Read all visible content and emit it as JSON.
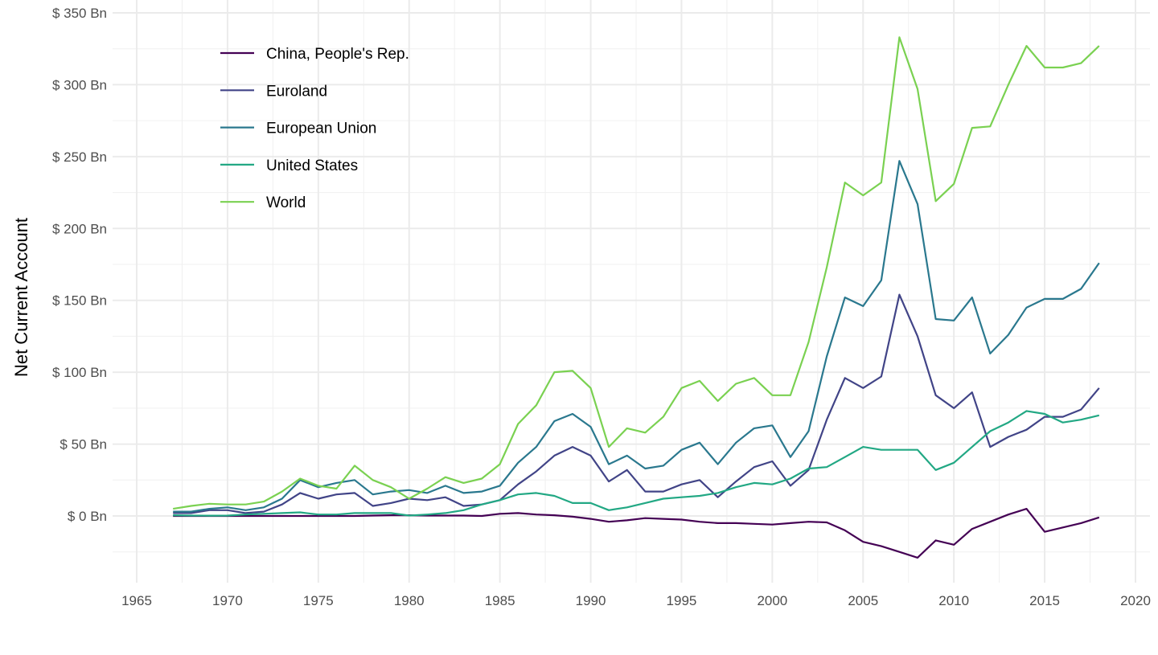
{
  "chart_data": {
    "type": "line",
    "title": "",
    "xlabel": "",
    "ylabel": "Net Current Account",
    "xlim": [
      1965,
      2020
    ],
    "ylim": [
      -46,
      359
    ],
    "x_ticks": [
      1965,
      1970,
      1975,
      1980,
      1985,
      1990,
      1995,
      2000,
      2005,
      2010,
      2015,
      2020
    ],
    "y_ticks": [
      0,
      50,
      100,
      150,
      200,
      250,
      300,
      350
    ],
    "y_tick_labels": [
      "$ 0 Bn",
      "$ 50 Bn",
      "$ 100 Bn",
      "$ 150 Bn",
      "$ 200 Bn",
      "$ 250 Bn",
      "$ 300 Bn",
      "$ 350 Bn"
    ],
    "grid": true,
    "legend_position": "top-left",
    "x": [
      1967,
      1968,
      1969,
      1970,
      1971,
      1972,
      1973,
      1974,
      1975,
      1976,
      1977,
      1978,
      1979,
      1980,
      1981,
      1982,
      1983,
      1984,
      1985,
      1986,
      1987,
      1988,
      1989,
      1990,
      1991,
      1992,
      1993,
      1994,
      1995,
      1996,
      1997,
      1998,
      1999,
      2000,
      2001,
      2002,
      2003,
      2004,
      2005,
      2006,
      2007,
      2008,
      2009,
      2010,
      2011,
      2012,
      2013,
      2014,
      2015,
      2016,
      2017,
      2018
    ],
    "series": [
      {
        "name": "China, People's Rep.",
        "color": "#440154",
        "values": [
          0,
          0,
          0,
          0,
          0,
          0,
          0,
          0,
          0,
          0,
          0,
          0.3,
          0.5,
          0.5,
          0.3,
          0.3,
          0.3,
          0,
          1.5,
          2,
          1,
          0.5,
          -0.5,
          -2,
          -4,
          -3,
          -1.5,
          -2,
          -2.5,
          -4,
          -5,
          -5,
          -5.5,
          -6,
          -5,
          -4,
          -4.5,
          -10,
          -18,
          -21,
          -25,
          -29,
          -17,
          -20,
          -9,
          -4,
          1,
          5,
          -11,
          -8,
          -5,
          -1
        ]
      },
      {
        "name": "Euroland",
        "color": "#414487",
        "values": [
          2,
          2,
          4,
          4,
          2,
          3,
          8,
          16,
          12,
          15,
          16,
          7,
          9,
          12,
          11,
          13,
          7,
          8,
          11,
          22,
          31,
          42,
          48,
          42,
          24,
          32,
          17,
          17,
          22,
          25,
          13,
          24,
          34,
          38,
          21,
          32,
          67,
          96,
          89,
          97,
          154,
          125,
          84,
          75,
          86,
          48,
          55,
          60,
          69,
          69,
          74,
          89
        ]
      },
      {
        "name": "European Union",
        "color": "#2A788E",
        "values": [
          3,
          3,
          5,
          6,
          4,
          6,
          12,
          25,
          20,
          23,
          25,
          15,
          17,
          18,
          16,
          21,
          16,
          17,
          21,
          37,
          48,
          66,
          71,
          62,
          36,
          42,
          33,
          35,
          46,
          51,
          36,
          51,
          61,
          63,
          41,
          59,
          111,
          152,
          146,
          164,
          247,
          217,
          137,
          136,
          152,
          113,
          126,
          145,
          151,
          151,
          158,
          176
        ]
      },
      {
        "name": "United States",
        "color": "#22A884",
        "values": [
          0.5,
          0.3,
          0.2,
          0.3,
          1,
          1.5,
          2,
          2.5,
          1,
          1,
          2,
          2,
          2,
          0.3,
          1,
          2,
          4,
          8,
          11,
          15,
          16,
          14,
          9,
          9,
          4,
          6,
          9,
          12,
          13,
          14,
          16,
          20,
          23,
          22,
          26,
          33,
          34,
          41,
          48,
          46,
          46,
          46,
          32,
          37,
          48,
          59,
          65,
          73,
          71,
          65,
          67,
          70
        ]
      },
      {
        "name": "World",
        "color": "#7AD151",
        "values": [
          5,
          7,
          8.5,
          8,
          8,
          10,
          17,
          26,
          21,
          19,
          35,
          25,
          20,
          12,
          19,
          27,
          23,
          26,
          36,
          64,
          77,
          100,
          101,
          89,
          48,
          61,
          58,
          69,
          89,
          94,
          80,
          92,
          96,
          84,
          84,
          121,
          173,
          232,
          223,
          232,
          333,
          297,
          219,
          231,
          270,
          271,
          300,
          327,
          312,
          312,
          315,
          327
        ]
      }
    ]
  }
}
